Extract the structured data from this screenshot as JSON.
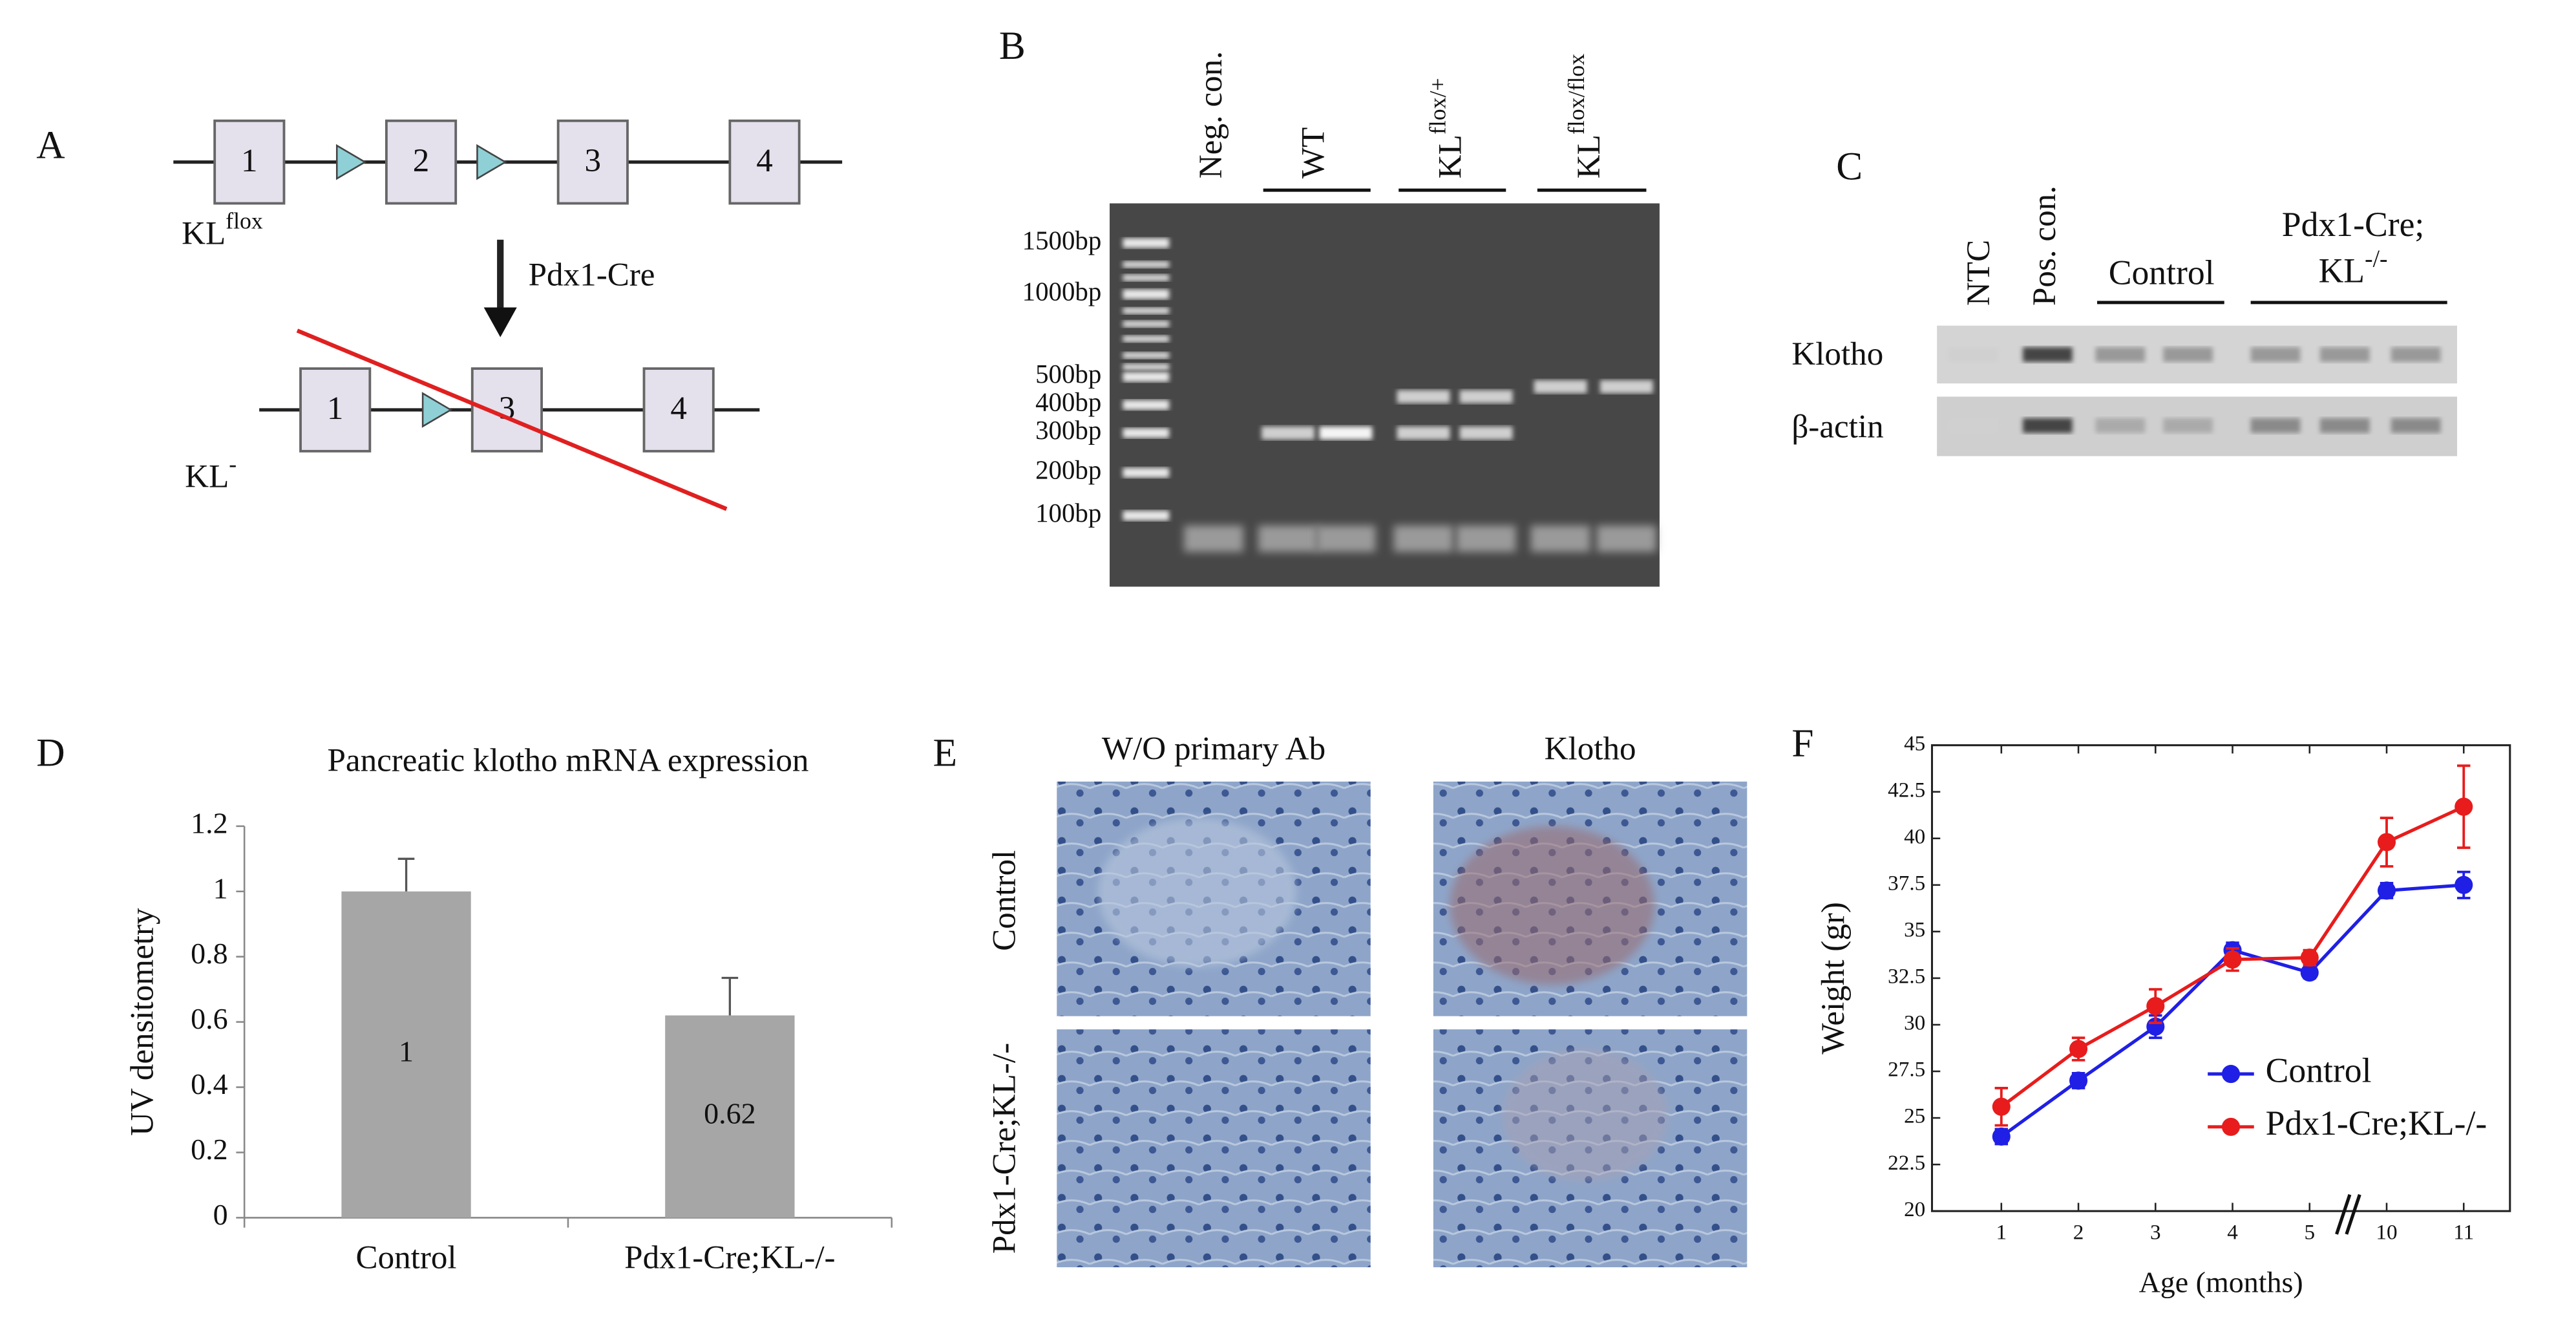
{
  "panel_labels": [
    "A",
    "B",
    "C",
    "D",
    "E",
    "F"
  ],
  "panel_a": {
    "exons": [
      "1",
      "2",
      "3",
      "4"
    ],
    "flox_allele": {
      "base": "KL",
      "sup": "flox"
    },
    "recombinase": "Pdx1-Cre",
    "null_allele": {
      "base": "KL",
      "sup": "-"
    }
  },
  "panel_b": {
    "neg_control": "Neg. con.",
    "groups": [
      {
        "base": "WT"
      },
      {
        "base": "KL",
        "sup": "flox/+"
      },
      {
        "base": "KL",
        "sup": "flox/flox"
      }
    ],
    "ladder": [
      "1500bp",
      "1000bp",
      "500bp",
      "400bp",
      "300bp",
      "200bp",
      "100bp"
    ]
  },
  "panel_c": {
    "ntc": "NTC",
    "pos_control": "Pos. con.",
    "control": "Control",
    "mutant": {
      "line1": "Pdx1-Cre;",
      "base": "KL",
      "sup": "-/-"
    },
    "rows": [
      "Klotho",
      "β-actin"
    ]
  },
  "panel_e": {
    "columns": [
      "W/O primary Ab",
      "Klotho"
    ],
    "rows": [
      "Control",
      "Pdx1-Cre;KL-/-"
    ]
  },
  "chart_data": [
    {
      "type": "bar",
      "title": "Pancreatic klotho mRNA expression",
      "y_label": "UV densitometry",
      "categories": [
        "Control",
        "Pdx1-Cre;KL-/-"
      ],
      "values": [
        1,
        0.62
      ],
      "errors": [
        0.1,
        0.115
      ],
      "color": "#a6a6a6",
      "ylim": [
        0,
        1.2
      ],
      "yticks": [
        0,
        0.2,
        0.4,
        0.6,
        0.8,
        1,
        1.2
      ]
    },
    {
      "type": "line",
      "y_label": "Weight (gr)",
      "x_label": "Age (months)",
      "categories": [
        "1",
        "2",
        "3",
        "4",
        "5",
        "10",
        "11"
      ],
      "series": [
        {
          "name": "Control",
          "color": "#1f1fe6",
          "values": [
            24,
            27,
            29.9,
            34,
            32.8,
            37.2,
            37.5
          ],
          "errors": [
            0.4,
            0.4,
            0.6,
            0.4,
            0.3,
            0.4,
            0.7
          ]
        },
        {
          "name": "Pdx1-Cre;KL-/-",
          "color": "#e81c1c",
          "values": [
            25.6,
            28.7,
            31,
            33.5,
            33.6,
            39.8,
            41.7
          ],
          "errors": [
            1,
            0.6,
            0.9,
            0.6,
            0.4,
            1.3,
            2.2
          ]
        }
      ],
      "ylim": [
        20,
        45
      ],
      "yticks": [
        20,
        22.5,
        25,
        27.5,
        30,
        32.5,
        35,
        37.5,
        40,
        42.5,
        45
      ],
      "legend": "right"
    }
  ]
}
